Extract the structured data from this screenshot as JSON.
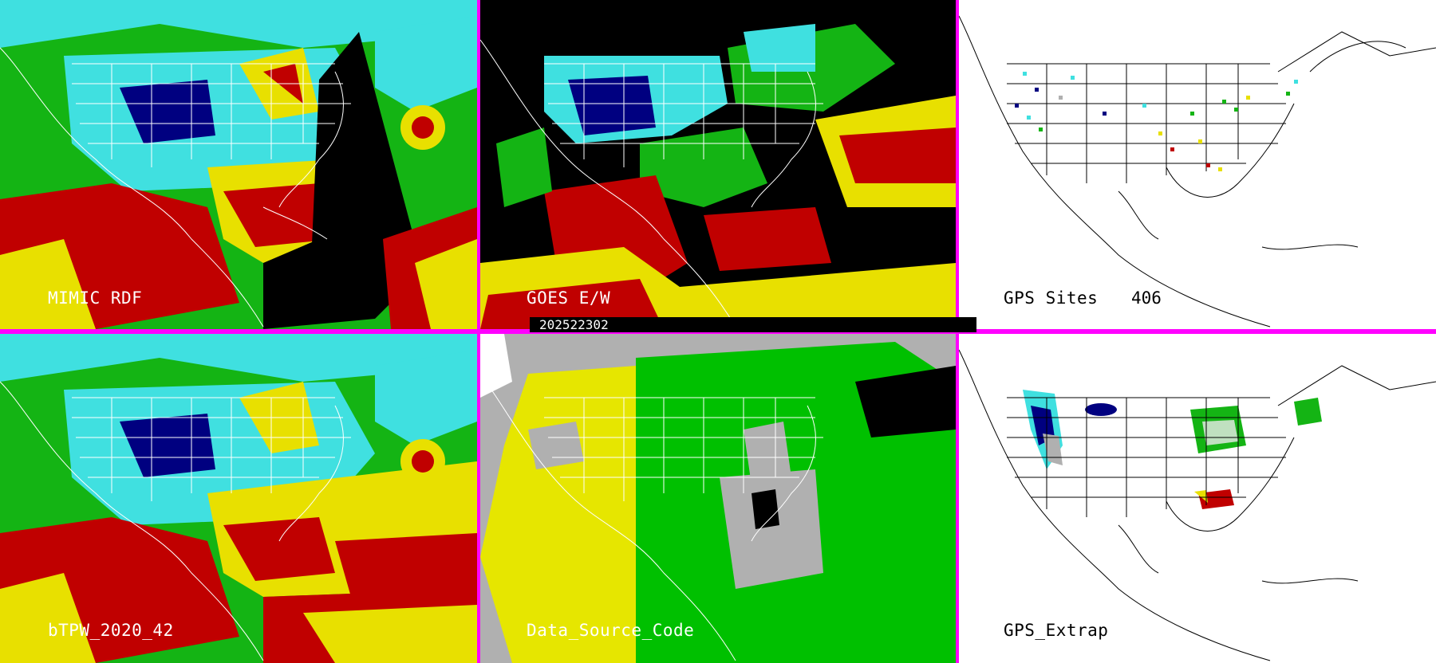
{
  "title_stamp": "202522302",
  "panels": [
    {
      "id": "mimic",
      "label": "MIMIC RDF"
    },
    {
      "id": "goes",
      "label": "GOES E/W"
    },
    {
      "id": "gps-sites",
      "label": "GPS Sites",
      "count": "406"
    },
    {
      "id": "btpw",
      "label": "bTPW_2020_42"
    },
    {
      "id": "data-source",
      "label": "Data_Source_Code"
    },
    {
      "id": "gps-extrap",
      "label": "GPS_Extrap"
    }
  ],
  "colors": {
    "separator": "#ff00ff",
    "tpw_low": "#000080",
    "tpw_cyan": "#3fe0e0",
    "tpw_green": "#10c010",
    "tpw_yellow": "#e8e000",
    "tpw_red": "#c00000",
    "source_yellow": "#e6e600",
    "source_green": "#00c000",
    "source_gray": "#b0b0b0"
  }
}
